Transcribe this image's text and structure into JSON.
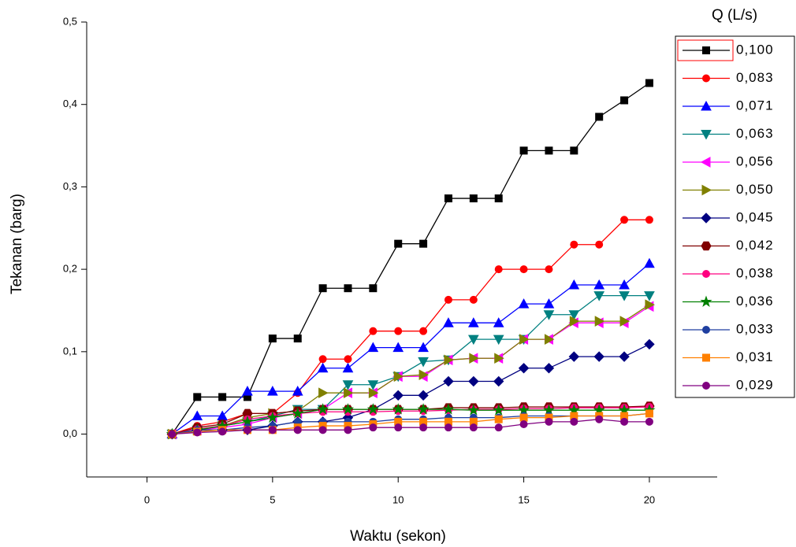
{
  "chart_data": {
    "type": "line",
    "x_label": "Waktu (sekon)",
    "y_label": "Tekanan (barg)",
    "legend_title": "Q (L/s)",
    "x": [
      1,
      2,
      3,
      4,
      5,
      6,
      7,
      8,
      9,
      10,
      11,
      12,
      13,
      14,
      15,
      16,
      17,
      18,
      19,
      20
    ],
    "xlim": [
      -2.4,
      22.7
    ],
    "xticks": [
      0,
      5,
      10,
      15,
      20
    ],
    "ylim": [
      -0.052,
      0.5
    ],
    "yticks": [
      {
        "value": 0,
        "label": "0,0"
      },
      {
        "value": 0.1,
        "label": "0,1"
      },
      {
        "value": 0.2,
        "label": "0,2"
      },
      {
        "value": 0.3,
        "label": "0,3"
      },
      {
        "value": 0.4,
        "label": "0,4"
      },
      {
        "value": 0.5,
        "label": "0,5"
      }
    ],
    "legend": "right",
    "series": [
      {
        "name": "0,100",
        "color": "#000000",
        "marker": "square",
        "values": [
          0,
          0.045,
          0.045,
          0.045,
          0.116,
          0.116,
          0.177,
          0.177,
          0.177,
          0.231,
          0.231,
          0.286,
          0.286,
          0.286,
          0.344,
          0.344,
          0.344,
          0.385,
          0.405,
          0.426
        ]
      },
      {
        "name": "0,083",
        "color": "#ff0000",
        "marker": "circle",
        "values": [
          0,
          0.01,
          0.015,
          0.025,
          0.025,
          0.05,
          0.091,
          0.091,
          0.125,
          0.125,
          0.125,
          0.163,
          0.163,
          0.2,
          0.2,
          0.2,
          0.23,
          0.23,
          0.26,
          0.26
        ]
      },
      {
        "name": "0,071",
        "color": "#0000ff",
        "marker": "triangle-up",
        "values": [
          0,
          0.022,
          0.022,
          0.052,
          0.052,
          0.052,
          0.08,
          0.08,
          0.105,
          0.105,
          0.105,
          0.135,
          0.135,
          0.135,
          0.158,
          0.158,
          0.181,
          0.181,
          0.181,
          0.207
        ]
      },
      {
        "name": "0,063",
        "color": "#008080",
        "marker": "triangle-down",
        "values": [
          0,
          0.005,
          0.01,
          0.015,
          0.022,
          0.03,
          0.03,
          0.06,
          0.06,
          0.07,
          0.088,
          0.09,
          0.115,
          0.115,
          0.115,
          0.145,
          0.145,
          0.168,
          0.168,
          0.168
        ]
      },
      {
        "name": "0,056",
        "color": "#ff00ff",
        "marker": "triangle-left",
        "values": [
          0,
          0.005,
          0.008,
          0.012,
          0.02,
          0.025,
          0.03,
          0.05,
          0.05,
          0.07,
          0.07,
          0.09,
          0.092,
          0.092,
          0.115,
          0.115,
          0.135,
          0.135,
          0.135,
          0.155
        ]
      },
      {
        "name": "0,050",
        "color": "#808000",
        "marker": "triangle-right",
        "values": [
          0,
          0.005,
          0.01,
          0.02,
          0.025,
          0.028,
          0.05,
          0.05,
          0.05,
          0.07,
          0.072,
          0.09,
          0.092,
          0.092,
          0.115,
          0.115,
          0.137,
          0.137,
          0.137,
          0.157
        ]
      },
      {
        "name": "0,045",
        "color": "#000080",
        "marker": "diamond",
        "values": [
          0,
          0.005,
          0.005,
          0.005,
          0.01,
          0.015,
          0.015,
          0.02,
          0.03,
          0.047,
          0.047,
          0.064,
          0.064,
          0.064,
          0.08,
          0.08,
          0.094,
          0.094,
          0.094,
          0.109
        ]
      },
      {
        "name": "0,042",
        "color": "#800000",
        "marker": "hexagon",
        "values": [
          0,
          0.008,
          0.012,
          0.025,
          0.025,
          0.028,
          0.03,
          0.03,
          0.03,
          0.03,
          0.03,
          0.032,
          0.032,
          0.032,
          0.033,
          0.033,
          0.033,
          0.033,
          0.033,
          0.034
        ]
      },
      {
        "name": "0,038",
        "color": "#ff0080",
        "marker": "circle",
        "values": [
          0,
          0.006,
          0.01,
          0.018,
          0.022,
          0.025,
          0.027,
          0.027,
          0.027,
          0.028,
          0.028,
          0.029,
          0.03,
          0.03,
          0.031,
          0.031,
          0.032,
          0.032,
          0.032,
          0.033
        ]
      },
      {
        "name": "0,036",
        "color": "#008000",
        "marker": "star",
        "values": [
          0,
          0.005,
          0.01,
          0.015,
          0.02,
          0.025,
          0.03,
          0.03,
          0.03,
          0.03,
          0.03,
          0.03,
          0.029,
          0.029,
          0.029,
          0.029,
          0.029,
          0.029,
          0.029,
          0.029
        ]
      },
      {
        "name": "0,033",
        "color": "#1f3fa0",
        "marker": "circle",
        "values": [
          0,
          0.005,
          0.005,
          0.008,
          0.01,
          0.015,
          0.015,
          0.015,
          0.015,
          0.018,
          0.018,
          0.02,
          0.02,
          0.02,
          0.022,
          0.022,
          0.022,
          0.022,
          0.022,
          0.025
        ]
      },
      {
        "name": "0,031",
        "color": "#ff8000",
        "marker": "square",
        "values": [
          0,
          0.003,
          0.005,
          0.005,
          0.005,
          0.008,
          0.01,
          0.01,
          0.012,
          0.015,
          0.015,
          0.015,
          0.015,
          0.018,
          0.02,
          0.02,
          0.022,
          0.022,
          0.022,
          0.025
        ]
      },
      {
        "name": "0,029",
        "color": "#800080",
        "marker": "circle",
        "values": [
          0,
          0.002,
          0.003,
          0.005,
          0.005,
          0.005,
          0.005,
          0.005,
          0.008,
          0.008,
          0.008,
          0.008,
          0.008,
          0.008,
          0.012,
          0.015,
          0.015,
          0.018,
          0.015,
          0.015
        ]
      }
    ]
  }
}
